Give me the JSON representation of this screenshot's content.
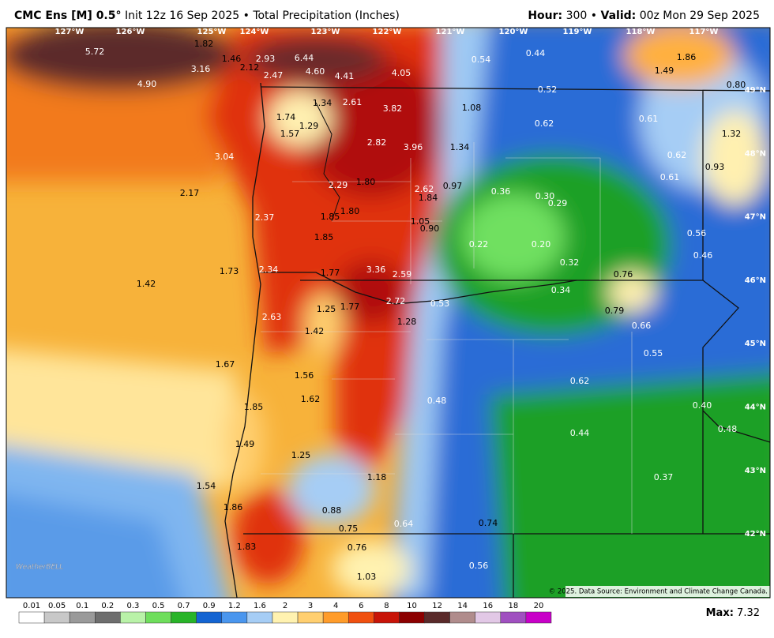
{
  "header": {
    "model": "CMC Ens [M] 0.5°",
    "init": "Init 12z 16 Sep 2025",
    "sep": "•",
    "product": "Total Precipitation (Inches)",
    "hour_label": "Hour:",
    "hour": "300",
    "valid_label": "Valid:",
    "valid": "00z Mon 29 Sep 2025"
  },
  "map": {
    "lon_labels": [
      "127°W",
      "126°W",
      "125°W",
      "124°W",
      "123°W",
      "122°W",
      "121°W",
      "120°W",
      "119°W",
      "118°W",
      "117°W"
    ],
    "lat_labels": [
      "49°N",
      "48°N",
      "47°N",
      "46°N",
      "45°N",
      "44°N",
      "43°N",
      "42°N"
    ],
    "values": [
      "5.72",
      "1.82",
      "1.46",
      "2.93",
      "2.12",
      "6.44",
      "4.60",
      "4.41",
      "4.05",
      "0.54",
      "0.44",
      "1.86",
      "1.49",
      "0.80",
      "4.90",
      "3.16",
      "2.47",
      "0.52",
      "1.34",
      "2.61",
      "3.82",
      "1.08",
      "1.74",
      "1.29",
      "0.62",
      "0.61",
      "1.57",
      "2.82",
      "3.96",
      "1.34",
      "1.32",
      "3.04",
      "0.62",
      "0.93",
      "0.61",
      "2.29",
      "1.80",
      "2.62",
      "0.97",
      "0.36",
      "2.17",
      "1.84",
      "0.30",
      "0.29",
      "1.80",
      "2.37",
      "1.85",
      "1.05",
      "0.90",
      "1.85",
      "0.56",
      "0.22",
      "0.20",
      "0.46",
      "0.32",
      "1.73",
      "2.34",
      "1.77",
      "3.36",
      "2.59",
      "0.76",
      "1.42",
      "0.34",
      "2.72",
      "0.53",
      "1.25",
      "1.77",
      "0.79",
      "2.63",
      "1.28",
      "0.66",
      "1.42",
      "0.55",
      "1.67",
      "1.56",
      "0.62",
      "1.62",
      "0.48",
      "0.40",
      "1.85",
      "0.48",
      "0.44",
      "1.49",
      "1.25",
      "1.18",
      "0.37",
      "1.54",
      "1.86",
      "0.88",
      "0.64",
      "0.74",
      "0.75",
      "1.83",
      "0.76",
      "0.56",
      "1.03"
    ],
    "logo": "WeatherBELL",
    "credit": "© 2025. Data Source: Environment and Climate Change Canada."
  },
  "colorbar": {
    "labels": [
      "0.01",
      "0.05",
      "0.1",
      "0.2",
      "0.3",
      "0.5",
      "0.7",
      "0.9",
      "1.2",
      "1.6",
      "2",
      "3",
      "4",
      "6",
      "8",
      "10",
      "12",
      "14",
      "16",
      "18",
      "20"
    ],
    "colors": [
      "#ffffff",
      "#c8c8c8",
      "#9a9a9a",
      "#6e6e6e",
      "#b9f2a8",
      "#6fde5c",
      "#28b428",
      "#1464d2",
      "#4a96ee",
      "#a6cdf5",
      "#fff2b0",
      "#ffcf70",
      "#ff9c2a",
      "#f0500f",
      "#c81408",
      "#8c0000",
      "#5a2a2a",
      "#b08c8c",
      "#e2c8e6",
      "#a050c0",
      "#c800c8"
    ],
    "max_label": "Max:",
    "max_value": "7.32"
  }
}
